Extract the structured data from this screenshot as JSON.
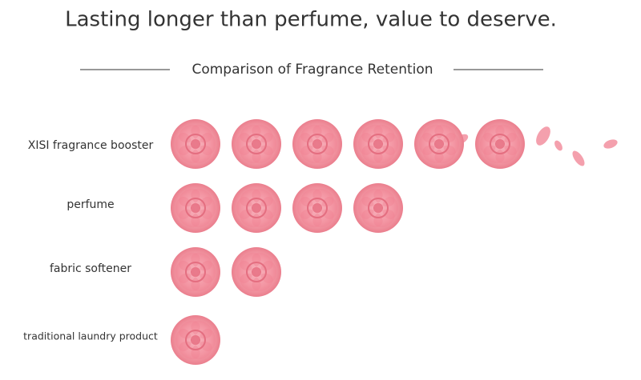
{
  "chart_data": {
    "type": "pictograph",
    "title": "Lasting longer than perfume, value to deserve.",
    "subtitle": "Comparison of Fragrance Retention",
    "categories": [
      "XISI fragrance booster",
      "perfume",
      "fabric softener",
      "traditional laundry product"
    ],
    "values": [
      6,
      4,
      2,
      1
    ],
    "color": "#f07f90"
  }
}
